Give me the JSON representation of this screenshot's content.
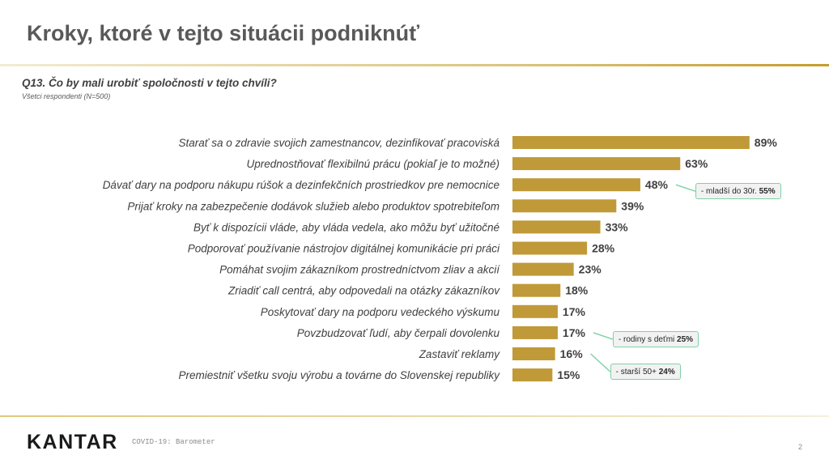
{
  "slide": {
    "title": "Kroky, ktoré v tejto situácii podniknúť",
    "question": "Q13. Čo by mali urobiť spoločnosti v tejto chvíli?",
    "base": "Všetci respondenti (N=500)"
  },
  "chart_data": {
    "type": "bar",
    "orientation": "horizontal",
    "categories": [
      "Starať sa o zdravie svojich zamestnancov, dezinfikovať pracoviská",
      "Uprednostňovať flexibilnú prácu (pokiaľ je to možné)",
      "Dávať dary na podporu nákupu rúšok a dezinfekčních prostriedkov pre nemocnice",
      "Prijať kroky na zabezpečenie dodávok služieb alebo produktov spotrebiteľom",
      "Byť k dispozícii vláde, aby vláda vedela, ako môžu byť užitočné",
      "Podporovať používanie nástrojov digitálnej komunikácie pri práci",
      "Pomáhat svojim zákazníkom prostredníctvom zliav a akcií",
      "Zriadiť call centrá, aby odpovedali na otázky zákazníkov",
      "Poskytovať dary na podporu vedeckého výskumu",
      "Povzbudzovať ľudí, aby čerpali dovolenku",
      "Zastaviť reklamy",
      "Premiestniť všetku svoju výrobu a továrne do Slovenskej republiky"
    ],
    "values": [
      89,
      63,
      48,
      39,
      33,
      28,
      23,
      18,
      17,
      17,
      16,
      15
    ],
    "value_labels": [
      "89%",
      "63%",
      "48%",
      "39%",
      "33%",
      "28%",
      "23%",
      "18%",
      "17%",
      "17%",
      "16%",
      "15%"
    ],
    "bar_color": "#c09a38",
    "xlim": [
      0,
      100
    ],
    "grid": false,
    "annotations": [
      {
        "category_index": 2,
        "label": "- mladší do 30r.",
        "value": "55%"
      },
      {
        "category_index": 9,
        "label": "- rodiny s deťmi",
        "value": "25%"
      },
      {
        "category_index": 10,
        "label": "- starší 50+",
        "value": "24%"
      }
    ]
  },
  "footer": {
    "brand": "KANTAR",
    "caption": "COVID-19: Barometer",
    "page_number": "2"
  }
}
